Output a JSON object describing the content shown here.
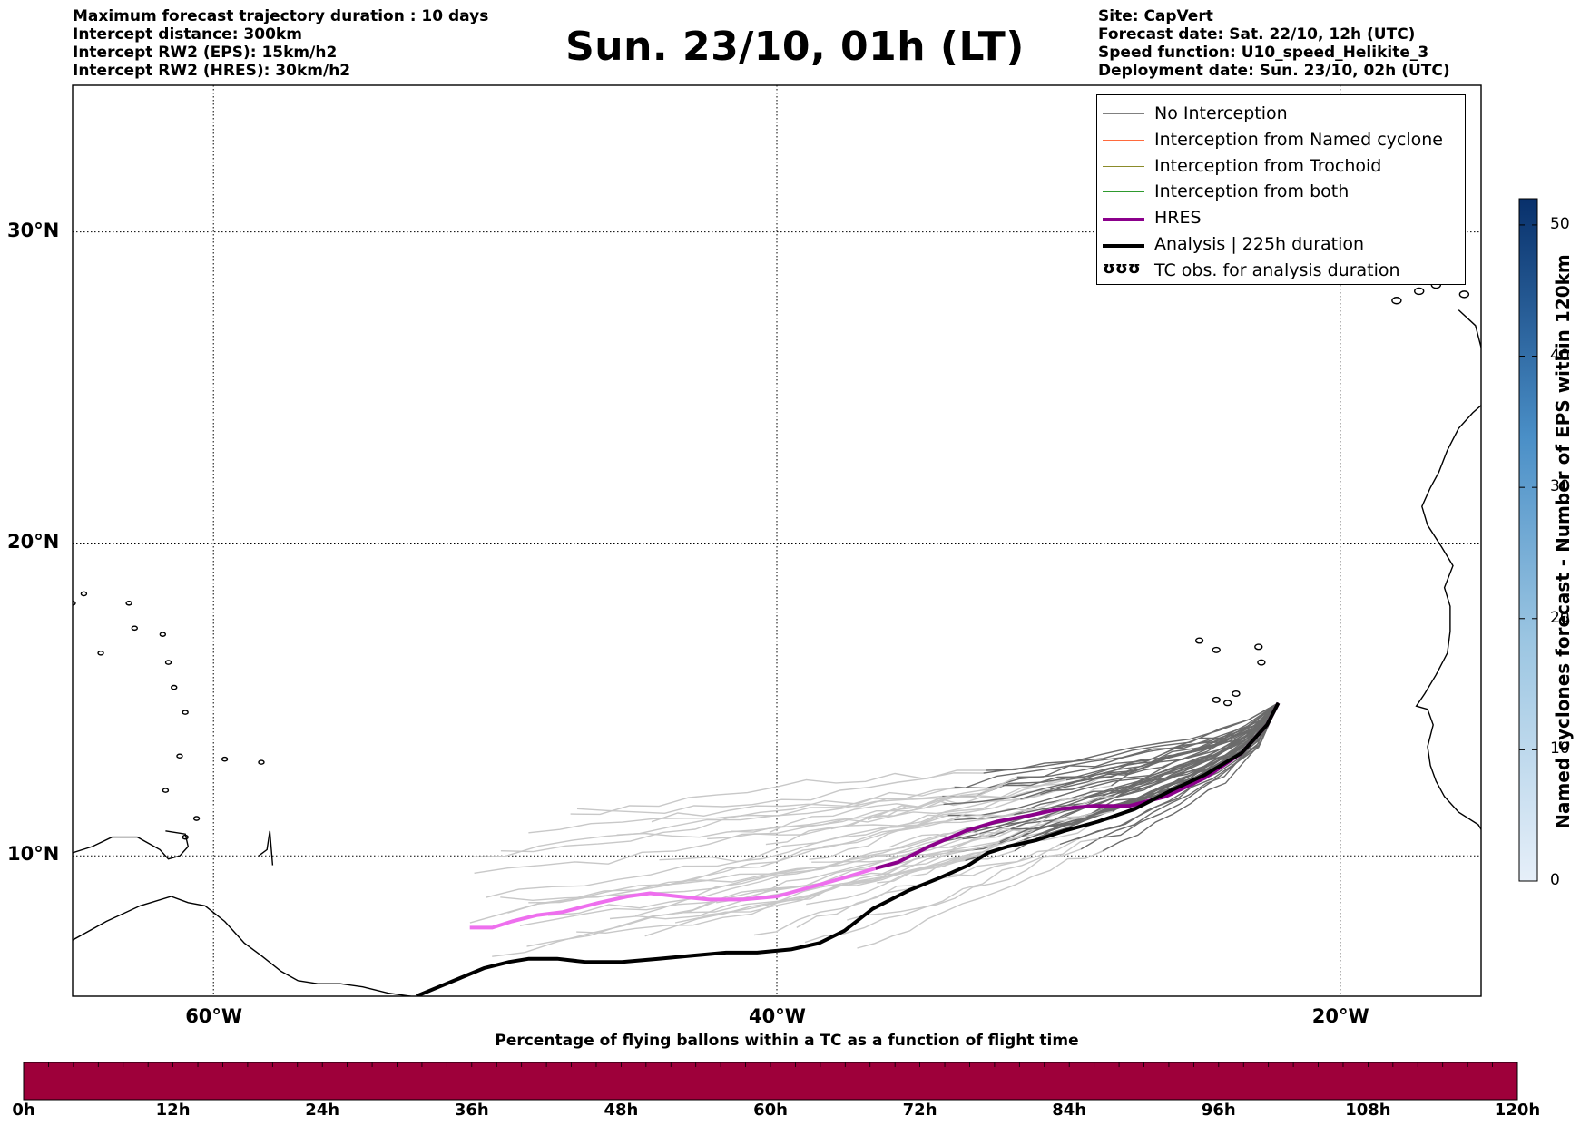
{
  "header": {
    "left_lines": [
      "Maximum forecast trajectory duration : 10 days",
      "Intercept distance: 300km",
      "Intercept RW2 (EPS):  15km/h2",
      "Intercept RW2 (HRES): 30km/h2"
    ],
    "title": "Sun. 23/10, 01h (LT)",
    "right_lines": [
      "Site: CapVert",
      "Forecast date: Sat. 22/10, 12h (UTC)",
      "Speed function: U10_speed_Helikite_3",
      "Deployment date: Sun. 23/10, 02h (UTC)"
    ]
  },
  "map": {
    "lon_ticks": [
      "60°W",
      "40°W",
      "20°W"
    ],
    "lat_ticks": [
      "30°N",
      "20°N",
      "10°N"
    ],
    "lon_range": [
      -65,
      -15
    ],
    "lat_range": [
      5.5,
      34.7
    ],
    "gridlines": true
  },
  "legend": {
    "items": [
      {
        "label": "No Interception",
        "color": "#808080",
        "style": "thin"
      },
      {
        "label": "Interception from Named cyclone",
        "color": "#ff6a3d",
        "style": "thin"
      },
      {
        "label": "Interception from Trochoid",
        "color": "#8b8b2a",
        "style": "thin"
      },
      {
        "label": "Interception from both",
        "color": "#2e9a2e",
        "style": "thin"
      },
      {
        "label": "HRES",
        "color": "#8b008b",
        "style": "thick"
      },
      {
        "label": "Analysis | 225h duration",
        "color": "#000000",
        "style": "thick"
      },
      {
        "label": "TC obs. for analysis duration",
        "color": "#000000",
        "style": "symbol",
        "symbol": "ʊʊʊ"
      }
    ]
  },
  "colorbar_vertical": {
    "label": "Named cyclones forecast - Number of EPS within 120km",
    "ticks": [
      "0",
      "10",
      "20",
      "30",
      "40",
      "50"
    ],
    "min": 0,
    "max": 52,
    "color_low": "#e6eff9",
    "color_high": "#08306b"
  },
  "colorbar_horizontal": {
    "title": "Percentage of flying ballons within a TC as a function of flight time",
    "ticks": [
      "0h",
      "12h",
      "24h",
      "36h",
      "48h",
      "60h",
      "72h",
      "84h",
      "96h",
      "108h",
      "120h"
    ],
    "fill_color": "#9e003a"
  },
  "tracks": {
    "analysis": [
      [
        -22.2,
        14.9
      ],
      [
        -22.6,
        14.2
      ],
      [
        -23.5,
        13.3
      ],
      [
        -24.8,
        12.6
      ],
      [
        -26.0,
        12.1
      ],
      [
        -27.3,
        11.5
      ],
      [
        -28.6,
        11.1
      ],
      [
        -29.8,
        10.8
      ],
      [
        -30.8,
        10.5
      ],
      [
        -31.8,
        10.3
      ],
      [
        -32.5,
        10.1
      ],
      [
        -33.2,
        9.7
      ],
      [
        -34.2,
        9.3
      ],
      [
        -35.3,
        8.9
      ],
      [
        -36.6,
        8.3
      ],
      [
        -37.6,
        7.6
      ],
      [
        -38.5,
        7.2
      ],
      [
        -39.5,
        7.0
      ],
      [
        -40.7,
        6.9
      ],
      [
        -41.8,
        6.9
      ],
      [
        -43.0,
        6.8
      ],
      [
        -44.2,
        6.7
      ],
      [
        -45.5,
        6.6
      ],
      [
        -46.8,
        6.6
      ],
      [
        -47.8,
        6.7
      ],
      [
        -48.8,
        6.7
      ],
      [
        -49.5,
        6.6
      ],
      [
        -50.4,
        6.4
      ],
      [
        -51.2,
        6.1
      ],
      [
        -52.0,
        5.8
      ],
      [
        -52.8,
        5.5
      ]
    ],
    "hres": [
      [
        -22.2,
        14.9
      ],
      [
        -22.6,
        14.2
      ],
      [
        -23.5,
        13.3
      ],
      [
        -24.8,
        12.5
      ],
      [
        -26.2,
        11.9
      ],
      [
        -27.5,
        11.6
      ],
      [
        -28.8,
        11.6
      ],
      [
        -30.0,
        11.5
      ],
      [
        -31.0,
        11.3
      ],
      [
        -32.2,
        11.1
      ],
      [
        -33.3,
        10.8
      ],
      [
        -34.6,
        10.3
      ],
      [
        -35.7,
        9.8
      ],
      [
        -36.5,
        9.6
      ],
      [
        -37.6,
        9.3
      ],
      [
        -38.8,
        9.0
      ],
      [
        -40.0,
        8.7
      ],
      [
        -41.2,
        8.6
      ],
      [
        -42.4,
        8.6
      ],
      [
        -43.5,
        8.7
      ],
      [
        -44.5,
        8.8
      ],
      [
        -45.3,
        8.7
      ],
      [
        -46.3,
        8.5
      ],
      [
        -47.6,
        8.2
      ],
      [
        -48.5,
        8.1
      ],
      [
        -49.4,
        7.9
      ],
      [
        -50.1,
        7.7
      ],
      [
        -50.9,
        7.7
      ]
    ]
  },
  "islands": {
    "cape_verde": [
      [
        -23.7,
        15.2
      ],
      [
        -24.4,
        15.0
      ],
      [
        -25.0,
        16.9
      ],
      [
        -24.4,
        16.6
      ],
      [
        -22.8,
        16.2
      ],
      [
        -22.9,
        16.7
      ],
      [
        -24.0,
        14.9
      ]
    ],
    "canary": [
      [
        -15.6,
        28.0
      ],
      [
        -16.6,
        28.3
      ],
      [
        -17.2,
        28.1
      ],
      [
        -17.9,
        28.6
      ],
      [
        -13.8,
        28.5
      ],
      [
        -14.8,
        29.0
      ],
      [
        -18.0,
        27.8
      ]
    ],
    "antilles": [
      [
        -61.4,
        15.4
      ],
      [
        -61.0,
        14.6
      ],
      [
        -61.6,
        16.2
      ],
      [
        -61.2,
        13.2
      ],
      [
        -59.6,
        13.1
      ],
      [
        -61.8,
        17.1
      ],
      [
        -62.8,
        17.3
      ],
      [
        -63.0,
        18.1
      ],
      [
        -64.6,
        18.4
      ],
      [
        -61.0,
        10.6
      ],
      [
        -60.6,
        11.2
      ],
      [
        -65.0,
        18.1
      ],
      [
        -64.0,
        16.5
      ],
      [
        -61.7,
        12.1
      ],
      [
        -58.3,
        13.0
      ]
    ]
  }
}
